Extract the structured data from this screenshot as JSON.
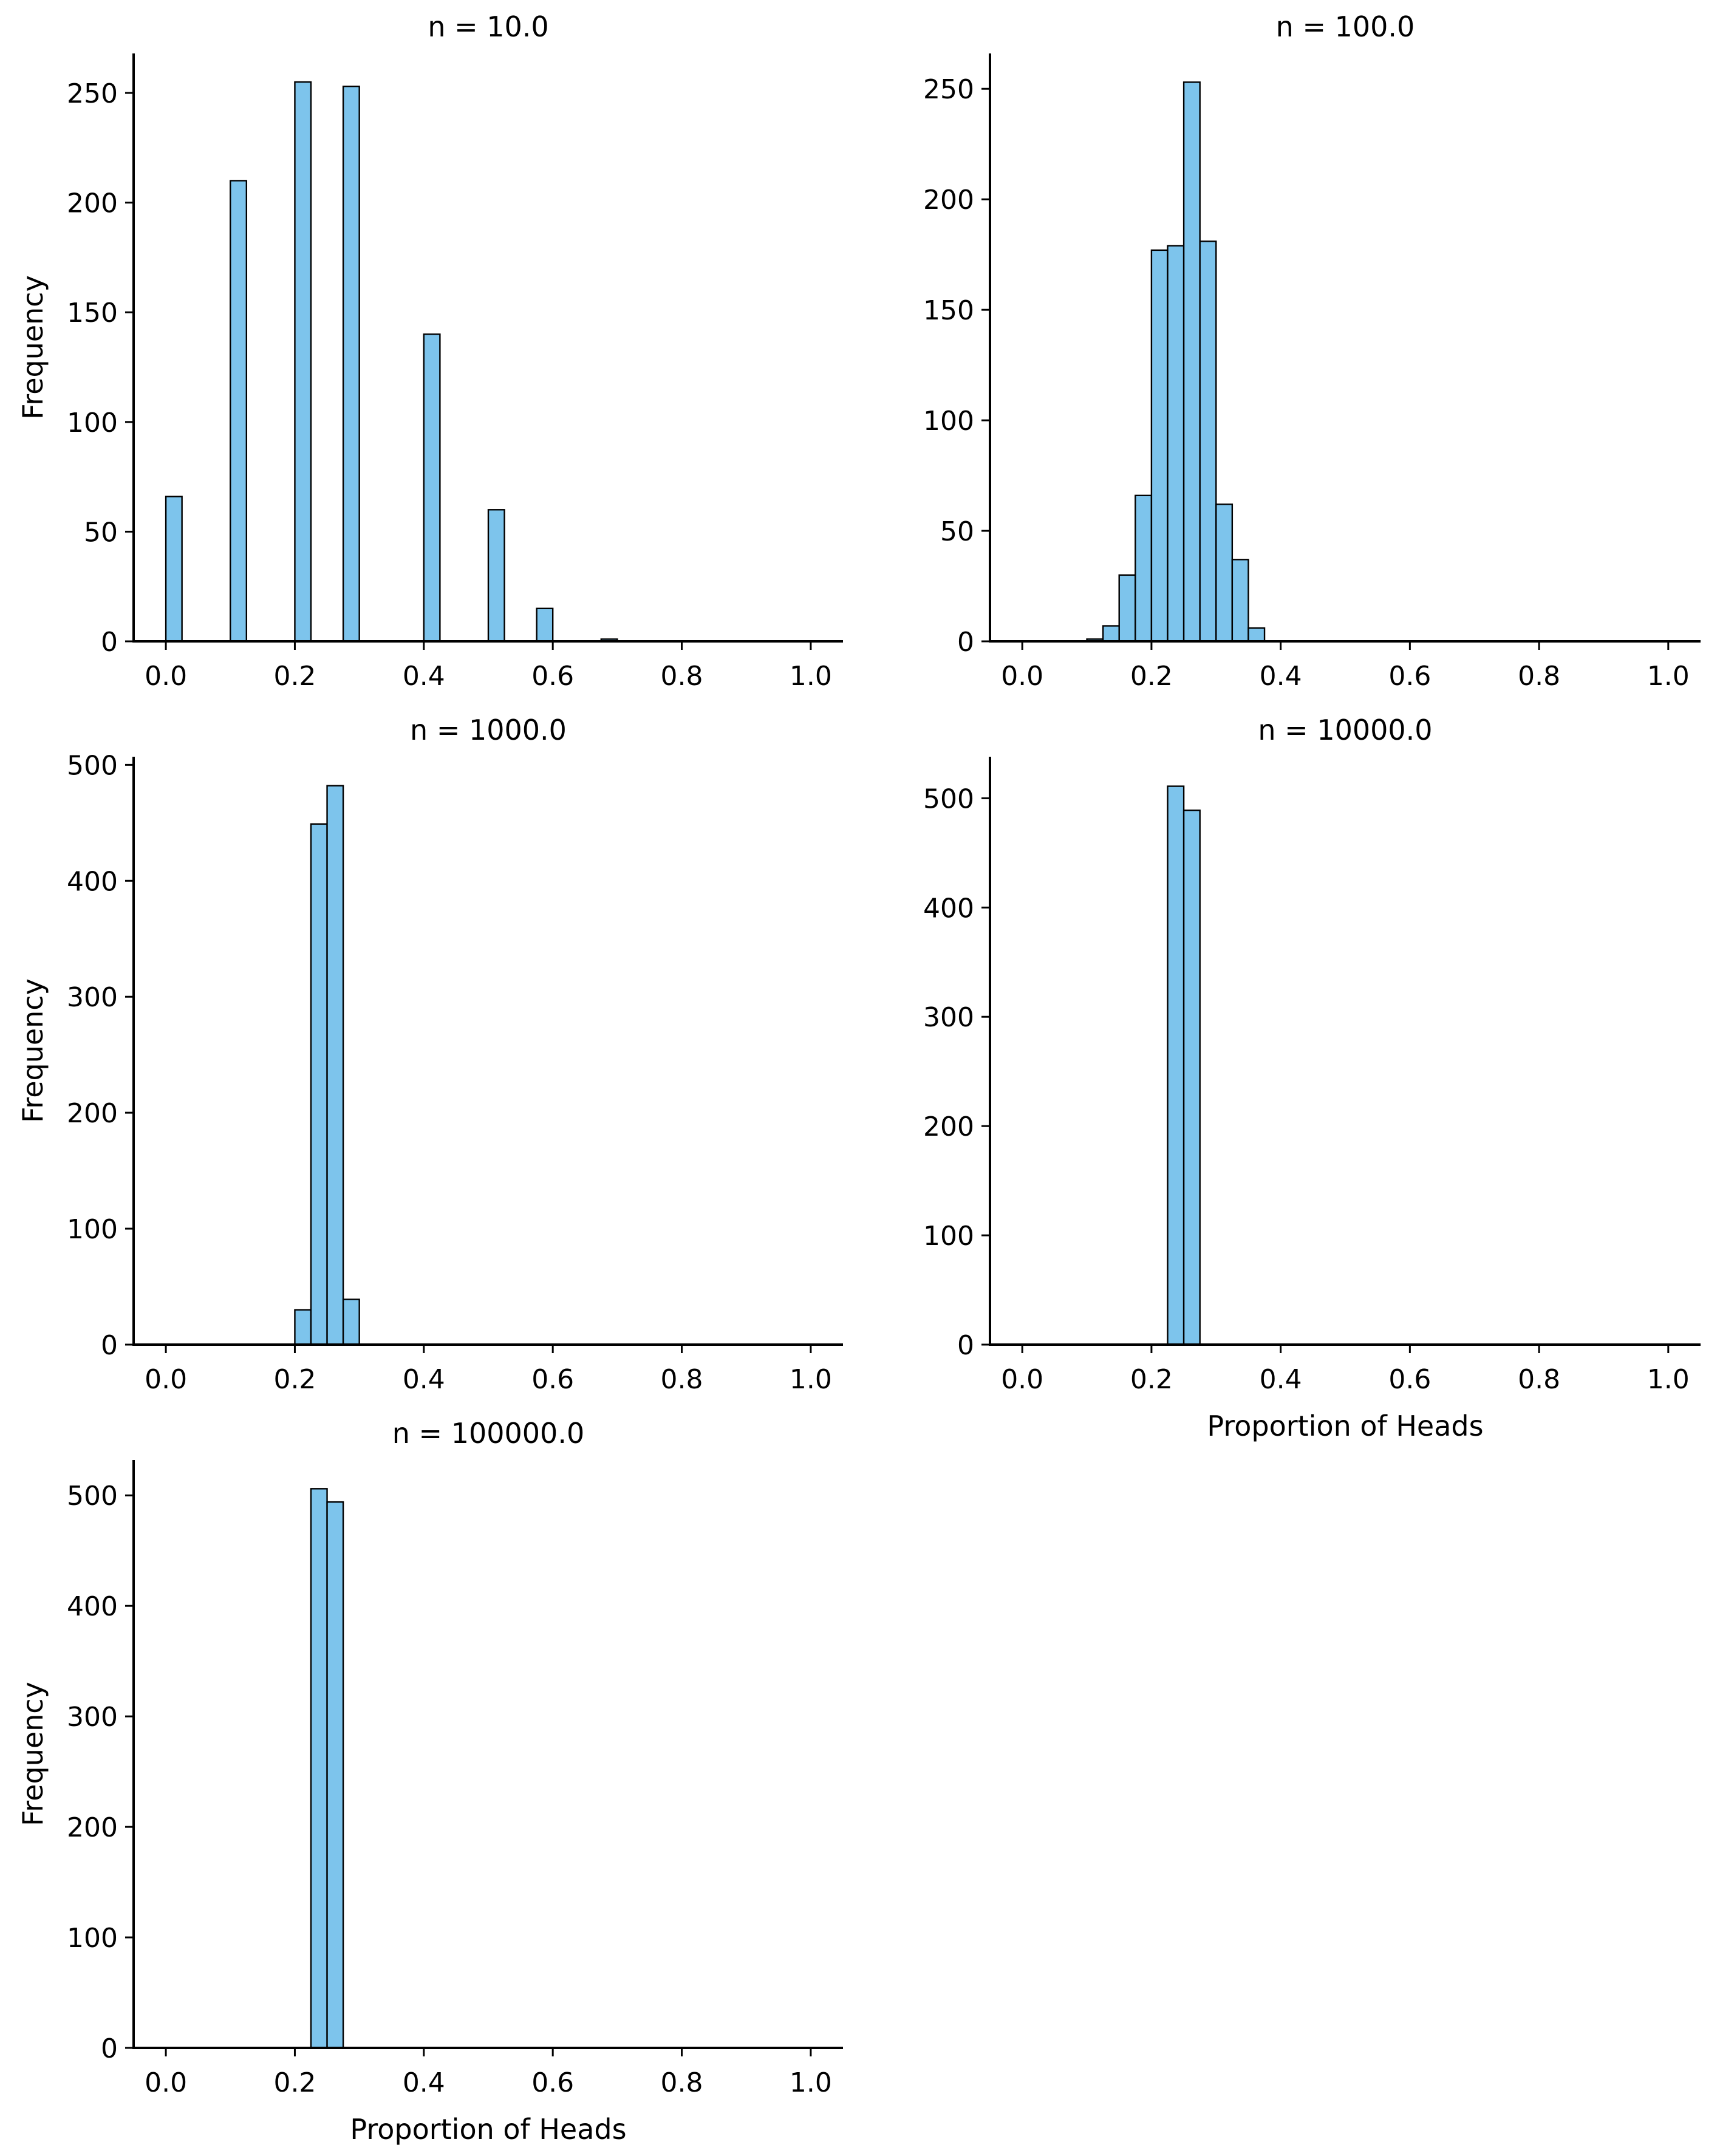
{
  "chart_data": [
    {
      "type": "bar",
      "title": "n = 10.0",
      "xlabel": "",
      "ylabel": "Frequency",
      "xlim": [
        -0.05,
        1.05
      ],
      "ylim": [
        0,
        268
      ],
      "xticks": [
        "0.0",
        "0.2",
        "0.4",
        "0.6",
        "0.8",
        "1.0"
      ],
      "yticks": [
        "0",
        "50",
        "100",
        "150",
        "200",
        "250"
      ],
      "bin_width": 0.025,
      "bins": [
        {
          "x0": 0.0,
          "count": 66
        },
        {
          "x0": 0.1,
          "count": 210
        },
        {
          "x0": 0.2,
          "count": 255
        },
        {
          "x0": 0.275,
          "count": 253
        },
        {
          "x0": 0.4,
          "count": 140
        },
        {
          "x0": 0.5,
          "count": 60
        },
        {
          "x0": 0.575,
          "count": 15
        },
        {
          "x0": 0.675,
          "count": 1
        }
      ],
      "color": "#7dc4ec",
      "edge_color": "#000000",
      "grid": false
    },
    {
      "type": "bar",
      "title": "n = 100.0",
      "xlabel": "",
      "ylabel": "",
      "xlim": [
        -0.05,
        1.05
      ],
      "ylim": [
        0,
        266
      ],
      "xticks": [
        "0.0",
        "0.2",
        "0.4",
        "0.6",
        "0.8",
        "1.0"
      ],
      "yticks": [
        "0",
        "50",
        "100",
        "150",
        "200",
        "250"
      ],
      "bin_width": 0.025,
      "bins": [
        {
          "x0": 0.1,
          "count": 1
        },
        {
          "x0": 0.125,
          "count": 7
        },
        {
          "x0": 0.15,
          "count": 30
        },
        {
          "x0": 0.175,
          "count": 66
        },
        {
          "x0": 0.2,
          "count": 177
        },
        {
          "x0": 0.225,
          "count": 179
        },
        {
          "x0": 0.25,
          "count": 253
        },
        {
          "x0": 0.275,
          "count": 181
        },
        {
          "x0": 0.3,
          "count": 62
        },
        {
          "x0": 0.325,
          "count": 37
        },
        {
          "x0": 0.35,
          "count": 6
        }
      ],
      "color": "#7dc4ec",
      "edge_color": "#000000",
      "grid": false
    },
    {
      "type": "bar",
      "title": "n = 1000.0",
      "xlabel": "",
      "ylabel": "Frequency",
      "xlim": [
        -0.05,
        1.05
      ],
      "ylim": [
        0,
        507
      ],
      "xticks": [
        "0.0",
        "0.2",
        "0.4",
        "0.6",
        "0.8",
        "1.0"
      ],
      "yticks": [
        "0",
        "100",
        "200",
        "300",
        "400",
        "500"
      ],
      "bin_width": 0.025,
      "bins": [
        {
          "x0": 0.2,
          "count": 30
        },
        {
          "x0": 0.225,
          "count": 449
        },
        {
          "x0": 0.25,
          "count": 482
        },
        {
          "x0": 0.275,
          "count": 39
        }
      ],
      "color": "#7dc4ec",
      "edge_color": "#000000",
      "grid": false
    },
    {
      "type": "bar",
      "title": "n = 10000.0",
      "xlabel": "Proportion of Heads",
      "ylabel": "",
      "xlim": [
        -0.05,
        1.05
      ],
      "ylim": [
        0,
        538
      ],
      "xticks": [
        "0.0",
        "0.2",
        "0.4",
        "0.6",
        "0.8",
        "1.0"
      ],
      "yticks": [
        "0",
        "100",
        "200",
        "300",
        "400",
        "500"
      ],
      "bin_width": 0.025,
      "bins": [
        {
          "x0": 0.225,
          "count": 511
        },
        {
          "x0": 0.25,
          "count": 489
        }
      ],
      "color": "#7dc4ec",
      "edge_color": "#000000",
      "grid": false
    },
    {
      "type": "bar",
      "title": "n = 100000.0",
      "xlabel": "Proportion of Heads",
      "ylabel": "Frequency",
      "xlim": [
        -0.05,
        1.05
      ],
      "ylim": [
        0,
        532
      ],
      "xticks": [
        "0.0",
        "0.2",
        "0.4",
        "0.6",
        "0.8",
        "1.0"
      ],
      "yticks": [
        "0",
        "100",
        "200",
        "300",
        "400",
        "500"
      ],
      "bin_width": 0.025,
      "bins": [
        {
          "x0": 0.225,
          "count": 506
        },
        {
          "x0": 0.25,
          "count": 494
        }
      ],
      "color": "#7dc4ec",
      "edge_color": "#000000",
      "grid": false
    }
  ]
}
